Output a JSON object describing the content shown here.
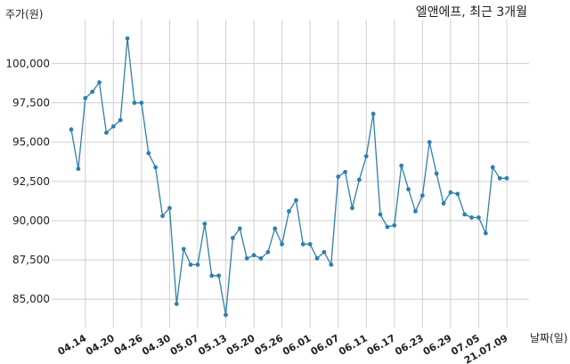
{
  "chart_data": {
    "type": "line",
    "title": "엘앤에프, 최근 3개월",
    "ylabel": "주가(원)",
    "xlabel": "날짜(일)",
    "ylim": [
      83200,
      102800
    ],
    "yticks": [
      85000,
      87500,
      90000,
      92500,
      95000,
      97500,
      100000
    ],
    "ytick_labels": [
      "85,000",
      "87,500",
      "90,000",
      "92,500",
      "95,000",
      "97,500",
      "100,000"
    ],
    "xtick_index": [
      2,
      6,
      10,
      14,
      18,
      22,
      26,
      30,
      34,
      38,
      42,
      46,
      50,
      54,
      58,
      62
    ],
    "xtick_labels": [
      "04.14",
      "04.20",
      "04.26",
      "04.30",
      "05.07",
      "05.13",
      "05.20",
      "05.26",
      "06.01",
      "06.07",
      "06.11",
      "06.17",
      "06.23",
      "06.29",
      "07.05",
      "21.07.09"
    ],
    "grid": true,
    "color": "#2e7fb0",
    "series": [
      {
        "values": [
          95800,
          93300,
          97800,
          98200,
          98800,
          95600,
          96000,
          96400,
          101600,
          97500,
          97500,
          94300,
          93400,
          90300,
          90800,
          84700,
          88200,
          87200,
          87200,
          89800,
          86500,
          86500,
          84000,
          88900,
          89500,
          87600,
          87800,
          87600,
          88000,
          89500,
          88500,
          90600,
          91300,
          88500,
          88500,
          87600,
          88000,
          87200,
          92800,
          93100,
          90800,
          92600,
          94100,
          96800,
          90400,
          89600,
          89700,
          93500,
          92000,
          90600,
          91600,
          95000,
          93000,
          91100,
          91800,
          91700,
          90400,
          90200,
          90200,
          89200,
          93400,
          92700,
          92700
        ]
      }
    ]
  }
}
